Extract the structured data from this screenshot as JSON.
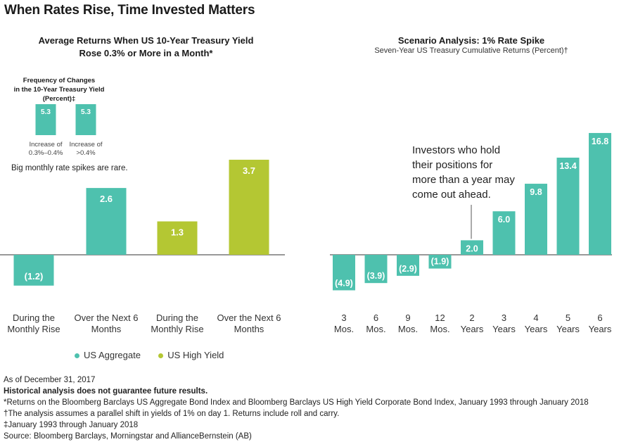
{
  "title": "When Rates Rise, Time Invested Matters",
  "colors": {
    "aggregate": "#4ec1ae",
    "high_yield": "#b4c733",
    "axis": "#333333"
  },
  "chart_data": [
    {
      "type": "bar",
      "title": "Average Returns When US 10-Year Treasury Yield",
      "title_line2": "Rose 0.3% or More in a Month*",
      "categories": [
        "During the Monthly Rise",
        "Over the Next 6 Months",
        "During the Monthly Rise",
        "Over the Next 6 Months"
      ],
      "category_lines": [
        [
          "During the",
          "Monthly Rise"
        ],
        [
          "Over the Next 6",
          "Months"
        ],
        [
          "During the",
          "Monthly Rise"
        ],
        [
          "Over the Next 6",
          "Months"
        ]
      ],
      "values": [
        -1.2,
        2.6,
        1.3,
        3.7
      ],
      "value_labels": [
        "(1.2)",
        "2.6",
        "1.3",
        "3.7"
      ],
      "bar_series": [
        "US Aggregate",
        "US Aggregate",
        "US High Yield",
        "US High Yield"
      ],
      "series": [
        {
          "name": "US Aggregate",
          "color": "#4ec1ae"
        },
        {
          "name": "US High Yield",
          "color": "#b4c733"
        }
      ],
      "ylim": [
        -1.2,
        3.7
      ],
      "legend_position": "bottom",
      "note": "Big monthly rate spikes are rare.",
      "inset": {
        "type": "bar",
        "title_line1": "Frequency of Changes",
        "title_line2": "in the 10-Year Treasury Yield (Percent)‡",
        "categories": [
          "Increase of 0.3%–0.4%",
          "Increase of >0.4%"
        ],
        "category_lines": [
          [
            "Increase of",
            "0.3%–0.4%"
          ],
          [
            "Increase of",
            ">0.4%"
          ]
        ],
        "values": [
          5.3,
          5.3
        ],
        "value_labels": [
          "5.3",
          "5.3"
        ]
      }
    },
    {
      "type": "bar",
      "title": "Scenario Analysis: 1% Rate Spike",
      "subtitle": "Seven-Year US Treasury Cumulative Returns (Percent)†",
      "categories": [
        "3 Mos.",
        "6 Mos.",
        "9 Mos.",
        "12 Mos.",
        "2 Years",
        "3 Years",
        "4 Years",
        "5 Years",
        "6 Years"
      ],
      "category_lines": [
        [
          "3",
          "Mos."
        ],
        [
          "6",
          "Mos."
        ],
        [
          "9",
          "Mos."
        ],
        [
          "12",
          "Mos."
        ],
        [
          "2",
          "Years"
        ],
        [
          "3",
          "Years"
        ],
        [
          "4",
          "Years"
        ],
        [
          "5",
          "Years"
        ],
        [
          "6",
          "Years"
        ]
      ],
      "values": [
        -4.9,
        -3.9,
        -2.9,
        -1.9,
        2.0,
        6.0,
        9.8,
        13.4,
        16.8
      ],
      "value_labels": [
        "(4.9)",
        "(3.9)",
        "(2.9)",
        "(1.9)",
        "2.0",
        "6.0",
        "9.8",
        "13.4",
        "16.8"
      ],
      "color": "#4ec1ae",
      "ylim": [
        -4.9,
        16.8
      ],
      "annotation": [
        "Investors who hold",
        "their positions for",
        "more than a year may",
        "come out ahead."
      ]
    }
  ],
  "footnotes": {
    "as_of": "As of December 31, 2017",
    "disclaimer": "Historical analysis does not guarantee future results.",
    "star": "*Returns on the Bloomberg Barclays US Aggregate Bond Index and Bloomberg Barclays US High Yield Corporate Bond Index,  January 1993 through January 2018",
    "dagger": "†The analysis assumes a parallel shift in yields of 1% on day 1. Returns include roll and carry.",
    "ddagger": "‡January 1993 through January 2018",
    "source": "Source: Bloomberg Barclays, Morningstar and AllianceBernstein (AB)"
  }
}
